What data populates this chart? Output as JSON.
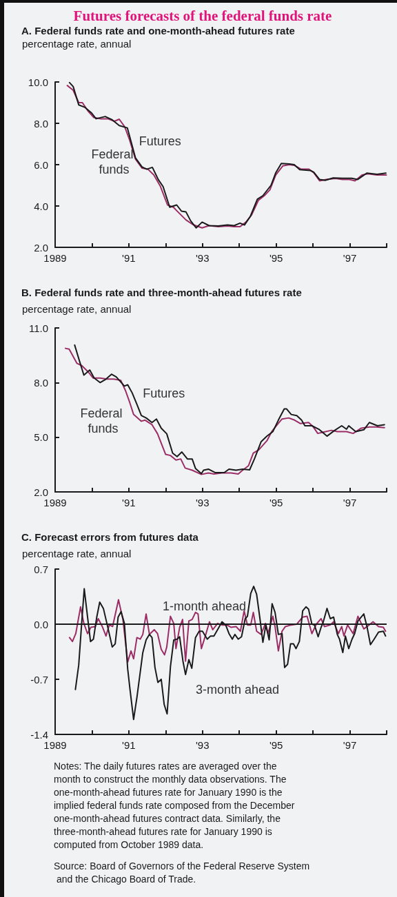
{
  "chart_data": [
    {
      "type": "line",
      "title": "Futures forecasts of the federal funds rate",
      "subtitle": "A. Federal funds rate and one-month-ahead futures rate",
      "ylabel": "percentage rate, annual",
      "xlim": [
        1989,
        1998
      ],
      "xticks": [
        {
          "value": 1989,
          "label": "1989"
        },
        {
          "value": 1990,
          "label": null
        },
        {
          "value": 1991,
          "label": "'91"
        },
        {
          "value": 1992,
          "label": null
        },
        {
          "value": 1993,
          "label": "'93"
        },
        {
          "value": 1994,
          "label": null
        },
        {
          "value": 1995,
          "label": "'95"
        },
        {
          "value": 1996,
          "label": null
        },
        {
          "value": 1997,
          "label": "'97"
        },
        {
          "value": 1998,
          "label": null
        }
      ],
      "ylim": [
        2,
        10
      ],
      "yticks": [
        {
          "value": 2,
          "label": "2.0"
        },
        {
          "value": 4,
          "label": "4.0"
        },
        {
          "value": 6,
          "label": "6.0"
        },
        {
          "value": 8,
          "label": "8.0"
        },
        {
          "value": 10,
          "label": "10.0"
        }
      ],
      "grid": false,
      "legend": false,
      "series": [
        {
          "name": "Federal funds",
          "color": "#9b2d66",
          "x": [
            1989.33,
            1989.49,
            1989.64,
            1989.74,
            1989.89,
            1990.05,
            1990.24,
            1990.43,
            1990.61,
            1990.74,
            1990.89,
            1991.02,
            1991.18,
            1991.36,
            1991.52,
            1991.68,
            1991.86,
            1992.05,
            1992.21,
            1992.33,
            1992.55,
            1992.74,
            1992.99,
            1993.18,
            1993.43,
            1993.68,
            1993.86,
            1994.02,
            1994.18,
            1994.33,
            1994.52,
            1994.68,
            1994.83,
            1994.99,
            1995.18,
            1995.36,
            1995.49,
            1995.68,
            1995.89,
            1996.02,
            1996.18,
            1996.36,
            1996.61,
            1996.8,
            1996.99,
            1997.14,
            1997.33,
            1997.49,
            1997.74,
            1997.99
          ],
          "values": [
            9.83,
            9.6,
            9.0,
            9.0,
            8.6,
            8.28,
            8.22,
            8.22,
            8.1,
            8.2,
            7.83,
            7.2,
            6.27,
            5.83,
            5.78,
            5.5,
            4.94,
            4.05,
            3.94,
            3.72,
            3.33,
            3.1,
            2.94,
            3.05,
            3.0,
            3.03,
            3.0,
            3.0,
            3.22,
            3.56,
            4.28,
            4.5,
            4.78,
            5.5,
            5.94,
            6.0,
            5.97,
            5.78,
            5.78,
            5.61,
            5.22,
            5.28,
            5.33,
            5.28,
            5.28,
            5.22,
            5.5,
            5.56,
            5.5,
            5.5
          ]
        },
        {
          "name": "Futures",
          "color": "#1a1a1a",
          "x": [
            1989.39,
            1989.49,
            1989.64,
            1989.8,
            1989.99,
            1990.11,
            1990.36,
            1990.55,
            1990.74,
            1990.96,
            1991.18,
            1991.36,
            1991.49,
            1991.64,
            1991.8,
            1991.93,
            1992.11,
            1992.3,
            1992.43,
            1992.55,
            1992.68,
            1992.83,
            1992.99,
            1993.18,
            1993.43,
            1993.68,
            1993.86,
            1994.02,
            1994.14,
            1994.3,
            1994.49,
            1994.64,
            1994.86,
            1994.99,
            1995.14,
            1995.36,
            1995.49,
            1995.64,
            1995.93,
            1996.02,
            1996.18,
            1996.33,
            1996.55,
            1996.8,
            1997.05,
            1997.21,
            1997.46,
            1997.74,
            1997.98
          ],
          "values": [
            9.97,
            9.78,
            8.89,
            8.78,
            8.5,
            8.22,
            8.33,
            8.17,
            7.89,
            7.78,
            6.33,
            5.89,
            5.78,
            5.87,
            5.28,
            4.94,
            3.94,
            4.05,
            3.75,
            3.72,
            3.28,
            2.94,
            3.22,
            3.05,
            3.03,
            3.08,
            3.05,
            3.17,
            3.08,
            3.5,
            4.33,
            4.5,
            5.0,
            5.61,
            6.06,
            6.03,
            6.0,
            5.76,
            5.72,
            5.64,
            5.28,
            5.24,
            5.36,
            5.34,
            5.34,
            5.28,
            5.59,
            5.53,
            5.59
          ]
        }
      ]
    },
    {
      "type": "line",
      "title": "B. Federal funds rate and three-month-ahead futures rate",
      "ylabel": "percentage rate, annual",
      "xlim": [
        1989,
        1998
      ],
      "xticks": [
        {
          "value": 1989,
          "label": "1989"
        },
        {
          "value": 1990,
          "label": null
        },
        {
          "value": 1991,
          "label": "'91"
        },
        {
          "value": 1992,
          "label": null
        },
        {
          "value": 1993,
          "label": "'93"
        },
        {
          "value": 1994,
          "label": null
        },
        {
          "value": 1995,
          "label": "'95"
        },
        {
          "value": 1996,
          "label": null
        },
        {
          "value": 1997,
          "label": "'97"
        },
        {
          "value": 1998,
          "label": null
        }
      ],
      "ylim": [
        2,
        11
      ],
      "yticks": [
        {
          "value": 2,
          "label": "2.0"
        },
        {
          "value": 5,
          "label": "5.0"
        },
        {
          "value": 8,
          "label": "8.0"
        },
        {
          "value": 11,
          "label": "11.0"
        }
      ],
      "grid": false,
      "legend": false,
      "series": [
        {
          "name": "Federal funds",
          "color": "#9b2d66",
          "x": [
            1989.28,
            1989.38,
            1989.59,
            1989.72,
            1989.91,
            1990.03,
            1990.22,
            1990.41,
            1990.59,
            1990.78,
            1990.91,
            1991.03,
            1991.13,
            1991.34,
            1991.44,
            1991.63,
            1991.78,
            1992.0,
            1992.13,
            1992.28,
            1992.41,
            1992.53,
            1992.72,
            1992.97,
            1993.16,
            1993.31,
            1993.53,
            1993.78,
            1993.97,
            1994.09,
            1994.25,
            1994.38,
            1994.53,
            1994.75,
            1994.88,
            1995.03,
            1995.16,
            1995.34,
            1995.5,
            1995.66,
            1995.88,
            1996.0,
            1996.13,
            1996.28,
            1996.5,
            1996.66,
            1996.91,
            1997.09,
            1997.31,
            1997.53,
            1997.72,
            1997.94
          ],
          "values": [
            9.88,
            9.84,
            9.06,
            8.94,
            8.56,
            8.25,
            8.25,
            8.19,
            8.19,
            8.13,
            7.56,
            6.88,
            6.25,
            5.88,
            5.94,
            5.69,
            5.19,
            4.06,
            4.0,
            3.75,
            3.81,
            3.31,
            3.19,
            2.96,
            3.04,
            2.98,
            3.04,
            3.04,
            2.98,
            3.19,
            3.44,
            4.13,
            4.31,
            4.81,
            5.31,
            5.69,
            6.0,
            6.06,
            5.94,
            5.75,
            5.81,
            5.59,
            5.21,
            5.28,
            5.38,
            5.31,
            5.31,
            5.21,
            5.5,
            5.56,
            5.56,
            5.53
          ]
        },
        {
          "name": "Futures",
          "color": "#1a1a1a",
          "x": [
            1989.53,
            1989.66,
            1989.78,
            1989.94,
            1990.06,
            1990.22,
            1990.38,
            1990.53,
            1990.66,
            1990.88,
            1990.97,
            1991.09,
            1991.22,
            1991.34,
            1991.47,
            1991.63,
            1991.75,
            1991.88,
            1992.03,
            1992.19,
            1992.31,
            1992.44,
            1992.59,
            1992.72,
            1992.81,
            1992.97,
            1993.03,
            1993.16,
            1993.34,
            1993.59,
            1993.72,
            1993.91,
            1994.09,
            1994.28,
            1994.41,
            1994.59,
            1994.75,
            1994.91,
            1995.06,
            1995.22,
            1995.28,
            1995.41,
            1995.56,
            1995.69,
            1995.78,
            1995.97,
            1996.16,
            1996.38,
            1996.59,
            1996.78,
            1996.91,
            1996.97,
            1997.16,
            1997.38,
            1997.53,
            1997.75,
            1997.94
          ],
          "values": [
            10.06,
            9.19,
            8.41,
            8.69,
            8.25,
            8.0,
            8.19,
            8.46,
            8.31,
            7.81,
            7.88,
            7.44,
            6.81,
            6.19,
            6.06,
            5.81,
            6.0,
            5.5,
            5.19,
            4.13,
            3.94,
            4.19,
            3.81,
            3.81,
            3.29,
            3.0,
            3.19,
            3.25,
            3.06,
            3.06,
            3.25,
            3.19,
            3.25,
            3.21,
            3.81,
            4.75,
            5.06,
            5.31,
            5.94,
            6.56,
            6.56,
            6.25,
            6.19,
            5.94,
            5.63,
            5.63,
            5.44,
            5.06,
            5.38,
            5.63,
            5.44,
            5.63,
            5.31,
            5.41,
            5.81,
            5.63,
            5.69
          ]
        }
      ]
    },
    {
      "type": "line",
      "title": "C. Forecast errors from futures data",
      "ylabel": "percentage rate, annual",
      "xlim": [
        1989,
        1998
      ],
      "xticks": [
        {
          "value": 1989,
          "label": "1989"
        },
        {
          "value": 1990,
          "label": null
        },
        {
          "value": 1991,
          "label": "'91"
        },
        {
          "value": 1992,
          "label": null
        },
        {
          "value": 1993,
          "label": "'93"
        },
        {
          "value": 1994,
          "label": null
        },
        {
          "value": 1995,
          "label": "'95"
        },
        {
          "value": 1996,
          "label": null
        },
        {
          "value": 1997,
          "label": "'97"
        },
        {
          "value": 1998,
          "label": null
        }
      ],
      "ylim": [
        -1.4,
        0.7
      ],
      "yticks": [
        {
          "value": -1.4,
          "label": "-1.4"
        },
        {
          "value": -0.7,
          "label": "-0.7"
        },
        {
          "value": 0,
          "label": "0.0"
        },
        {
          "value": 0.7,
          "label": "0.7"
        }
      ],
      "grid": false,
      "legend": false,
      "ref_lines": [
        {
          "axis": "y",
          "value": 0,
          "color": "#1a1a1a"
        }
      ],
      "annotations": [
        "Notes: The daily futures rates are averaged over the month to construct the monthly data observations. The one-month-ahead futures rate for January 1990 is the implied federal funds rate composed from the December one-month-ahead futures contract data. Similarly, the three-month-ahead futures rate for January 1990 is computed from October 1989 data.",
        "Source: Board of Governors of the Federal Reserve System and the Chicago Board of Trade."
      ],
      "series": [
        {
          "name": "1-month ahead",
          "color": "#9b2d66",
          "x": [
            1989.39,
            1989.47,
            1989.56,
            1989.69,
            1989.78,
            1989.88,
            1989.97,
            1990.09,
            1990.17,
            1990.28,
            1990.38,
            1990.47,
            1990.56,
            1990.72,
            1990.84,
            1990.97,
            1991.06,
            1991.13,
            1991.22,
            1991.31,
            1991.38,
            1991.47,
            1991.56,
            1991.69,
            1991.78,
            1991.88,
            1991.97,
            1992.03,
            1992.13,
            1992.22,
            1992.28,
            1992.38,
            1992.46,
            1992.54,
            1992.63,
            1992.72,
            1992.81,
            1992.88,
            1992.97,
            1993.09,
            1993.19,
            1993.28,
            1993.41,
            1993.53,
            1993.66,
            1993.78,
            1993.91,
            1994.03,
            1994.13,
            1994.22,
            1994.31,
            1994.38,
            1994.47,
            1994.59,
            1994.71,
            1994.78,
            1994.91,
            1994.97,
            1995.06,
            1995.16,
            1995.25,
            1995.41,
            1995.56,
            1995.72,
            1995.84,
            1995.97,
            1996.09,
            1996.22,
            1996.31,
            1996.47,
            1996.56,
            1996.69,
            1996.78,
            1996.84,
            1996.94,
            1997.09,
            1997.22,
            1997.38,
            1997.47,
            1997.63,
            1997.78,
            1997.91,
            1997.97
          ],
          "values": [
            -0.17,
            -0.22,
            -0.12,
            0.22,
            0.01,
            -0.12,
            -0.04,
            -0.03,
            0.07,
            -0.03,
            -0.15,
            -0.01,
            -0.03,
            0.31,
            0.06,
            -0.48,
            -0.34,
            -0.44,
            -0.17,
            -0.19,
            -0.13,
            0.13,
            -0.13,
            -0.07,
            -0.12,
            -0.32,
            -0.39,
            -0.29,
            0.1,
            0.01,
            -0.31,
            -0.04,
            0.06,
            -0.47,
            0.04,
            0.06,
            0.15,
            0.13,
            -0.31,
            -0.13,
            0.03,
            -0.07,
            0.01,
            -0.01,
            -0.01,
            -0.04,
            -0.03,
            -0.09,
            0.17,
            -0.01,
            -0.01,
            0.15,
            -0.09,
            -0.13,
            0.01,
            -0.12,
            0.1,
            -0.03,
            -0.34,
            -0.09,
            -0.03,
            -0.01,
            0.0,
            0.09,
            0.1,
            -0.12,
            0.0,
            0.07,
            -0.03,
            -0.01,
            0.03,
            -0.12,
            -0.03,
            -0.15,
            -0.01,
            -0.12,
            0.1,
            -0.06,
            -0.03,
            0.03,
            -0.03,
            -0.04,
            -0.09
          ]
        },
        {
          "name": "3-month ahead",
          "color": "#1a1a1a",
          "x": [
            1989.55,
            1989.64,
            1989.72,
            1989.79,
            1989.88,
            1989.96,
            1990.04,
            1990.13,
            1990.21,
            1990.31,
            1990.44,
            1990.55,
            1990.63,
            1990.71,
            1990.79,
            1990.88,
            1990.97,
            1991.03,
            1991.13,
            1991.22,
            1991.38,
            1991.47,
            1991.56,
            1991.63,
            1991.71,
            1991.79,
            1991.88,
            1991.96,
            1992.04,
            1992.13,
            1992.22,
            1992.31,
            1992.38,
            1992.47,
            1992.54,
            1992.63,
            1992.71,
            1992.81,
            1992.91,
            1993.0,
            1993.13,
            1993.22,
            1993.31,
            1993.41,
            1993.53,
            1993.63,
            1993.72,
            1993.81,
            1993.88,
            1993.97,
            1994.06,
            1994.16,
            1994.22,
            1994.31,
            1994.39,
            1994.47,
            1994.56,
            1994.64,
            1994.72,
            1994.81,
            1994.89,
            1994.97,
            1995.06,
            1995.16,
            1995.23,
            1995.31,
            1995.39,
            1995.47,
            1995.54,
            1995.63,
            1995.72,
            1995.81,
            1995.88,
            1995.97,
            1996.04,
            1996.14,
            1996.22,
            1996.28,
            1996.38,
            1996.47,
            1996.56,
            1996.66,
            1996.72,
            1996.81,
            1996.88,
            1996.97,
            1997.06,
            1997.13,
            1997.22,
            1997.38,
            1997.47,
            1997.56,
            1997.66,
            1997.78,
            1997.91,
            1997.97
          ],
          "values": [
            -0.83,
            -0.52,
            0.01,
            0.45,
            0.09,
            -0.22,
            -0.19,
            0.09,
            0.28,
            0.2,
            -0.06,
            -0.29,
            -0.25,
            0.09,
            0.16,
            0.01,
            -0.57,
            -0.82,
            -1.21,
            -0.93,
            -0.36,
            -0.2,
            -0.13,
            -0.17,
            -0.55,
            -0.74,
            -0.7,
            -1.02,
            -1.14,
            -0.54,
            -0.2,
            -0.19,
            -0.16,
            -0.47,
            -0.64,
            -0.45,
            -0.56,
            -0.17,
            -0.09,
            -0.09,
            -0.19,
            -0.15,
            -0.15,
            -0.07,
            0.03,
            -0.01,
            -0.12,
            -0.19,
            -0.13,
            -0.19,
            -0.16,
            0.07,
            0.1,
            0.39,
            0.48,
            0.38,
            0.07,
            -0.23,
            -0.01,
            -0.2,
            0.26,
            0.15,
            -0.13,
            -0.12,
            -0.55,
            -0.51,
            -0.25,
            -0.25,
            -0.31,
            -0.22,
            0.17,
            0.22,
            0.19,
            0.0,
            -0.01,
            -0.16,
            -0.04,
            0.03,
            0.2,
            0.07,
            0.09,
            -0.13,
            -0.19,
            -0.36,
            -0.15,
            -0.31,
            -0.19,
            -0.12,
            0.04,
            0.13,
            -0.04,
            -0.26,
            -0.19,
            -0.1,
            -0.09,
            -0.15
          ]
        }
      ]
    }
  ]
}
